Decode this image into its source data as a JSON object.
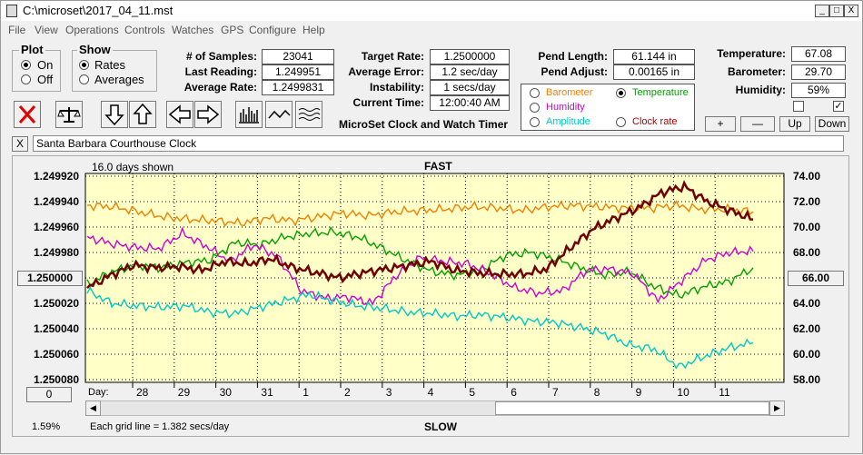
{
  "window": {
    "title": "C:\\microset\\2017_04_11.mst",
    "minimize": "_",
    "maximize": "□",
    "close": "X"
  },
  "menu": [
    "File",
    "View",
    "Operations",
    "Controls",
    "Watches",
    "GPS",
    "Configure",
    "Help"
  ],
  "plot_group": {
    "title": "Plot",
    "options": [
      "On",
      "Off"
    ],
    "selected": "On"
  },
  "show_group": {
    "title": "Show",
    "options": [
      "Rates",
      "Averages"
    ],
    "selected": "Rates"
  },
  "stats": {
    "samples_label": "# of Samples:",
    "samples_value": "23041",
    "last_reading_label": "Last Reading:",
    "last_reading_value": "1.249951",
    "average_rate_label": "Average Rate:",
    "average_rate_value": "1.2499831",
    "target_rate_label": "Target Rate:",
    "target_rate_value": "1.2500000",
    "average_error_label": "Average Error:",
    "average_error_value": "1.2 sec/day",
    "instability_label": "Instability:",
    "instability_value": "1 secs/day",
    "current_time_label": "Current Time:",
    "current_time_value": "12:00:40 AM",
    "pend_length_label": "Pend Length:",
    "pend_length_value": "61.144 in",
    "pend_adjust_label": "Pend Adjust:",
    "pend_adjust_value": "0.00165 in",
    "temperature_label": "Temperature:",
    "temperature_value": "67.08",
    "barometer_label": "Barometer:",
    "barometer_value": "29.70",
    "humidity_label": "Humidity:",
    "humidity_value": "59%"
  },
  "app_caption": "MicroSet Clock and Watch Timer",
  "sensor_options": [
    {
      "label": "Barometer",
      "color": "#f08000",
      "selected": false
    },
    {
      "label": "Temperature",
      "color": "#00a000",
      "selected": true
    },
    {
      "label": "Humidity",
      "color": "#d000d0",
      "selected": false
    },
    {
      "label": "Clock rate",
      "color": "#b00000",
      "selected": false
    },
    {
      "label": "Amplitude",
      "color": "#00c8c8",
      "selected": false
    }
  ],
  "buttons": {
    "plus": "+",
    "minus": "—",
    "up": "Up",
    "down": "Down",
    "close_x": "X"
  },
  "clock_name": "Santa Barbara Courthouse Clock",
  "chart_data": {
    "type": "line",
    "top_label": "FAST",
    "bottom_label": "SLOW",
    "days_shown": "16.0 days shown",
    "grid_note": "Each grid line = 1.382 secs/day",
    "zoom_readout": "1.59%",
    "left_button": "1.250000",
    "right_button": "66.00",
    "scroll_button": "0",
    "day_prefix": "Day:",
    "y_left_ticks": [
      "1.249920",
      "1.249940",
      "1.249960",
      "1.249980",
      "1.250000",
      "1.250020",
      "1.250040",
      "1.250060",
      "1.250080"
    ],
    "y_right_ticks": [
      "74.00",
      "72.00",
      "70.00",
      "68.00",
      "66.00",
      "64.00",
      "62.00",
      "60.00",
      "58.00"
    ],
    "x_ticks": [
      "28",
      "29",
      "30",
      "31",
      "1",
      "2",
      "3",
      "4",
      "5",
      "6",
      "7",
      "8",
      "9",
      "10",
      "11"
    ],
    "y_left_range": [
      1.24992,
      1.25008
    ],
    "y_right_range": [
      58,
      74
    ],
    "grid": true,
    "series": [
      {
        "color": "#f08000",
        "values": [
          71.7,
          71.6,
          71.2,
          70.8,
          70.6,
          70.5,
          70.3,
          70.7,
          70.5,
          70.8,
          71.1,
          70.9,
          71.2,
          71.3,
          71.4,
          71.6,
          71.5,
          71.3,
          71.6,
          71.7,
          71.6,
          71.5,
          71.5,
          71.7,
          71.4,
          71.4,
          71.2
        ]
      },
      {
        "color": "#00a000",
        "values": [
          65.5,
          66.5,
          67.0,
          66.8,
          67.2,
          67.4,
          68.8,
          68.6,
          69.2,
          69.5,
          69.6,
          69.2,
          68.3,
          67.3,
          66.5,
          66.2,
          66.7,
          67.8,
          68.0,
          67.5,
          66.8,
          66.2,
          66.5,
          65.3,
          64.6,
          65.3,
          65.7,
          66.8
        ]
      },
      {
        "color": "#d000d0",
        "values": [
          69.2,
          68.7,
          68.4,
          68.3,
          69.5,
          68.5,
          67.3,
          68.6,
          67.7,
          65.0,
          64.4,
          64.5,
          64.0,
          66.2,
          67.6,
          67.3,
          67.1,
          66.3,
          65.2,
          64.8,
          65.0,
          66.6,
          66.7,
          66.3,
          64.2,
          65.8,
          67.4,
          68.0,
          68.1
        ]
      },
      {
        "color": "#00c8c8",
        "values": [
          65.0,
          64.0,
          63.8,
          63.7,
          63.8,
          63.3,
          63.2,
          63.7,
          64.2,
          64.7,
          64.2,
          63.8,
          63.6,
          63.3,
          63.2,
          63.0,
          63.1,
          62.9,
          62.6,
          62.5,
          62.1,
          61.6,
          60.7,
          60.4,
          59.0,
          59.8,
          60.5,
          60.9
        ]
      },
      {
        "color": "#700000",
        "values": [
          65.2,
          66.2,
          67.0,
          66.8,
          66.9,
          66.6,
          67.3,
          67.1,
          67.5,
          66.8,
          66.4,
          66.0,
          66.4,
          66.7,
          67.0,
          67.3,
          66.6,
          66.4,
          66.3,
          66.3,
          66.7,
          68.3,
          69.8,
          70.7,
          71.5,
          72.7,
          73.2,
          72.0,
          71.3,
          70.6
        ]
      }
    ]
  }
}
